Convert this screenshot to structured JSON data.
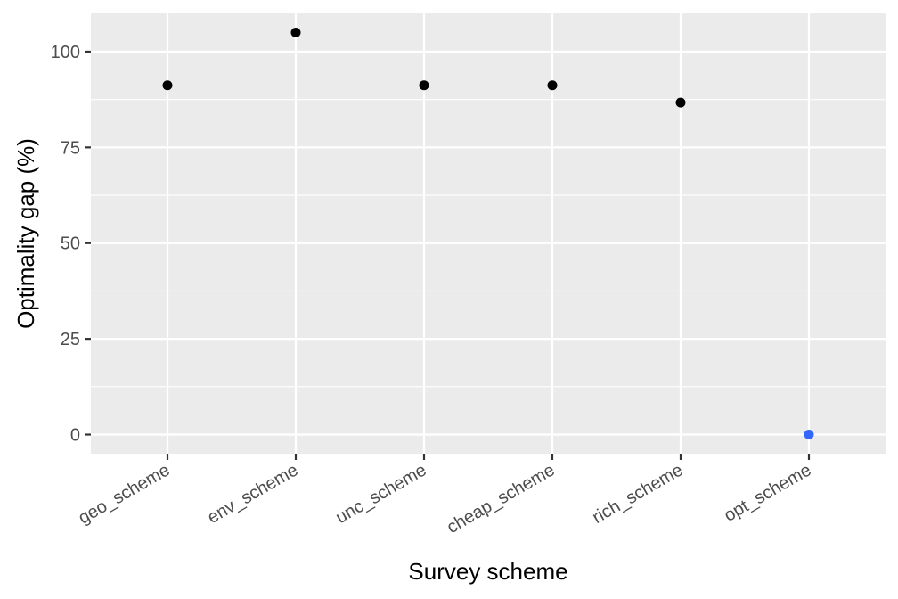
{
  "chart_data": {
    "type": "scatter",
    "title": "",
    "xlabel": "Survey scheme",
    "ylabel": "Optimality gap (%)",
    "categories": [
      "geo_scheme",
      "env_scheme",
      "unc_scheme",
      "cheap_scheme",
      "rich_scheme",
      "opt_scheme"
    ],
    "values": [
      91.2,
      105.0,
      91.2,
      91.2,
      86.7,
      0
    ],
    "point_colors": [
      "#000000",
      "#000000",
      "#000000",
      "#000000",
      "#000000",
      "#3366ff"
    ],
    "ylim": [
      -5,
      110
    ],
    "yticks": [
      0,
      25,
      50,
      75,
      100
    ],
    "grid": true,
    "panel_background": "#ebebeb",
    "grid_color": "#ffffff"
  }
}
